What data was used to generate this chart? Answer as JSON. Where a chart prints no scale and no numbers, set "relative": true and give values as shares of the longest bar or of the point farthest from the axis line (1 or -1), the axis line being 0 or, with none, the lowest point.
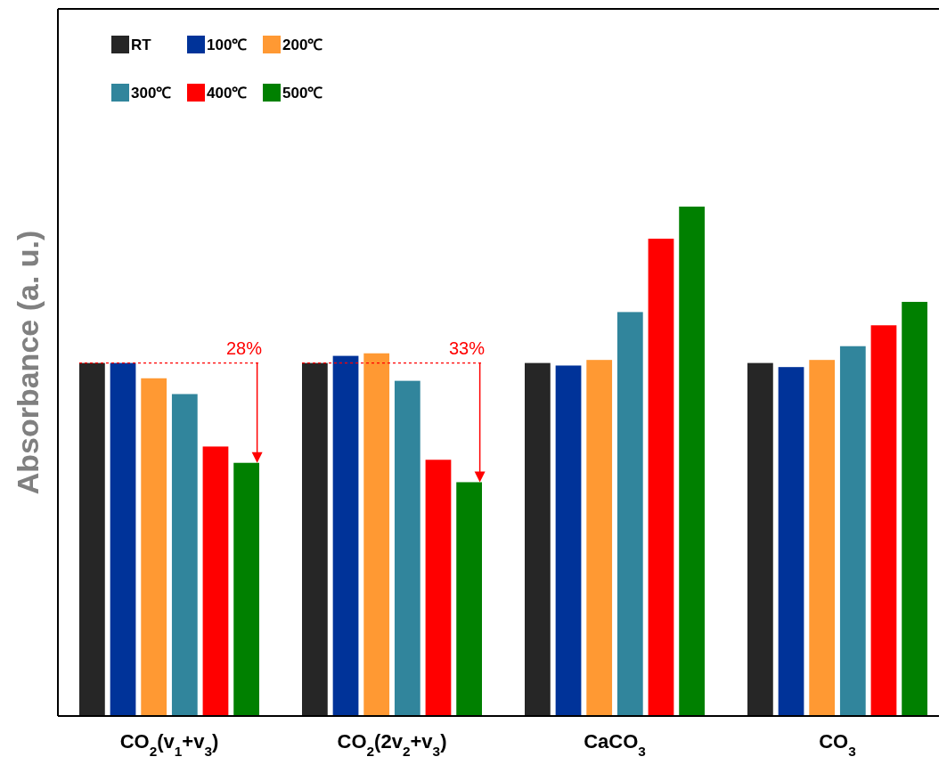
{
  "chart_data": {
    "type": "bar",
    "ylabel": "Absorbance (a. u.)",
    "relative": true,
    "categories": [
      "CO$_{2}$(v$_{1}$+v$_{3}$)",
      "CO$_{2}$(2v$_{2}$+v$_{3}$)",
      "CaCO$_{3}$",
      "CO$_{3}$"
    ],
    "series": [
      {
        "name": "RT",
        "color": "#262626",
        "values": [
          0.693,
          0.693,
          0.693,
          0.693
        ]
      },
      {
        "name": "100℃",
        "color": "#003399",
        "values": [
          0.693,
          0.707,
          0.688,
          0.685
        ]
      },
      {
        "name": "200℃",
        "color": "#ff9933",
        "values": [
          0.663,
          0.712,
          0.699,
          0.699
        ]
      },
      {
        "name": "300℃",
        "color": "#31859c",
        "values": [
          0.632,
          0.658,
          0.793,
          0.726
        ]
      },
      {
        "name": "400℃",
        "color": "#ff0000",
        "values": [
          0.529,
          0.503,
          0.937,
          0.767
        ]
      },
      {
        "name": "500℃",
        "color": "#008000",
        "values": [
          0.497,
          0.459,
          1,
          0.813
        ]
      }
    ],
    "annotations": [
      "28%",
      "33%"
    ],
    "legend": "top left"
  }
}
